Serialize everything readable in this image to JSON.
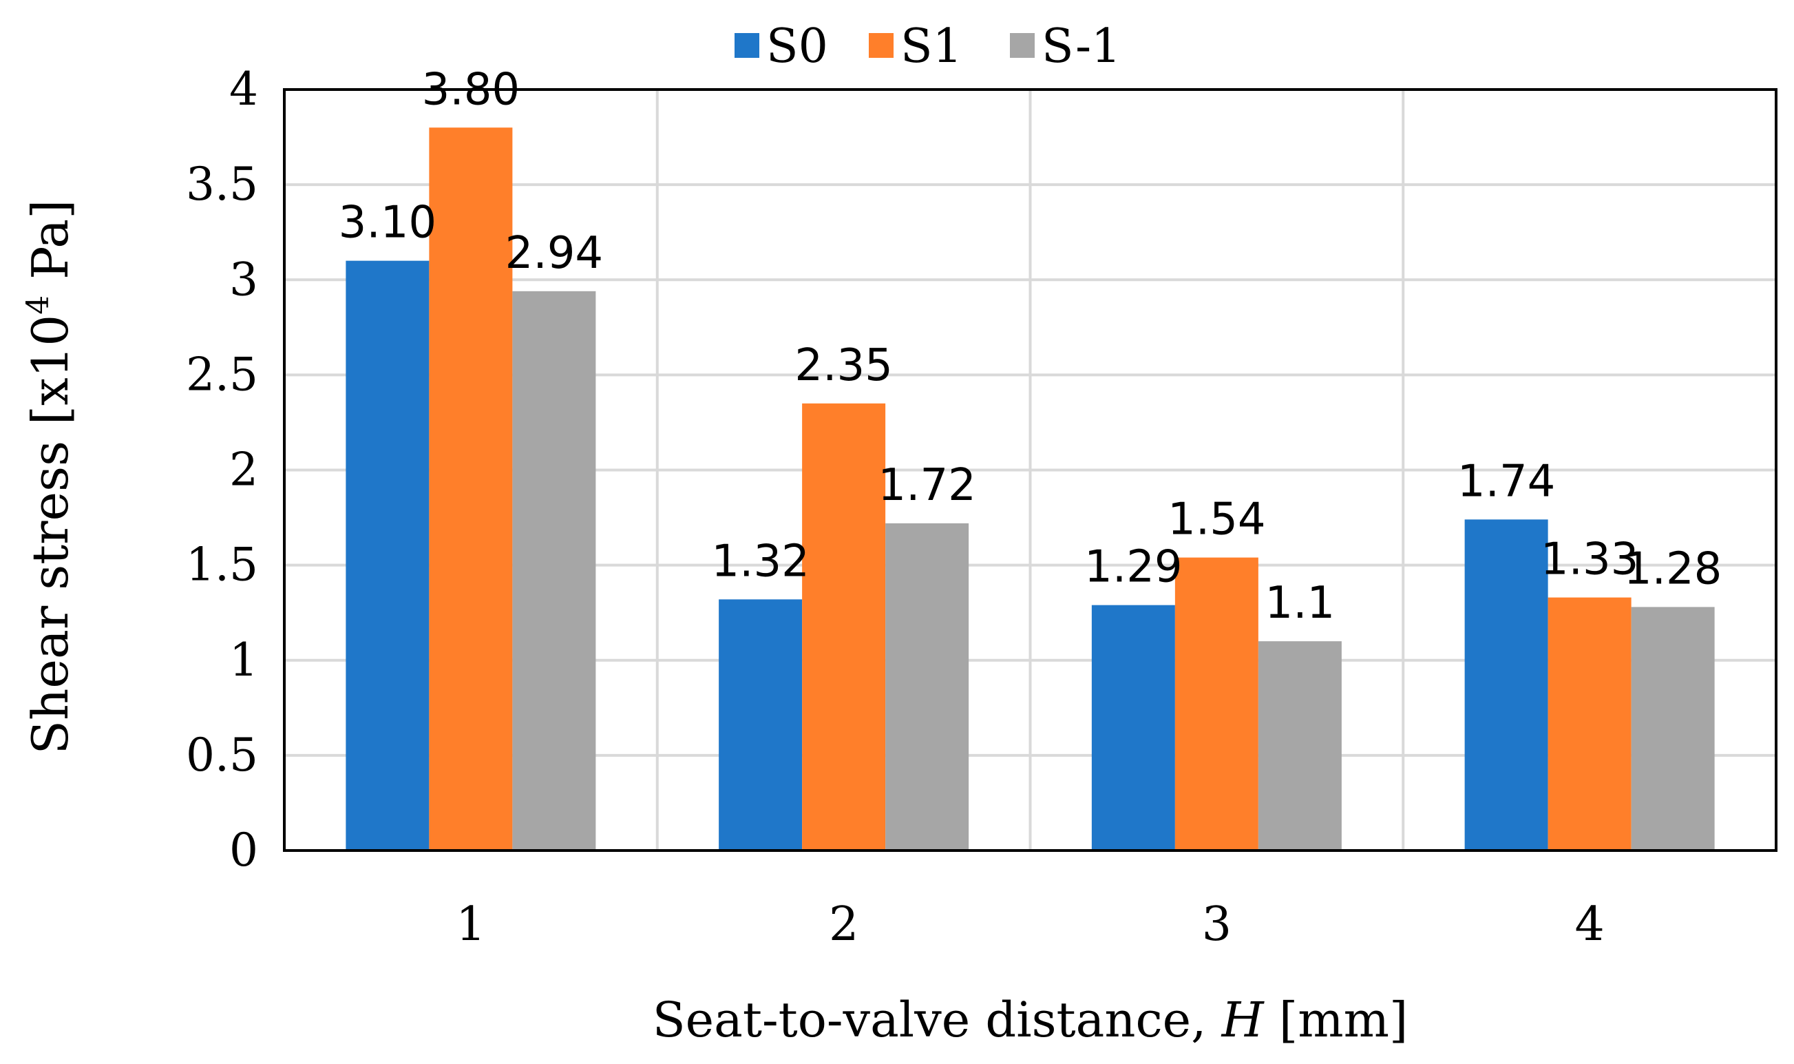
{
  "chart_data": {
    "type": "bar",
    "categories": [
      "1",
      "2",
      "3",
      "4"
    ],
    "series": [
      {
        "name": "S0",
        "color": "#1f77c9",
        "values": [
          3.1,
          1.32,
          1.29,
          1.74
        ],
        "labels": [
          "3.10",
          "1.32",
          "1.29",
          "1.74"
        ]
      },
      {
        "name": "S1",
        "color": "#ff7f2a",
        "values": [
          3.8,
          2.35,
          1.54,
          1.33
        ],
        "labels": [
          "3.80",
          "2.35",
          "1.54",
          "1.33"
        ]
      },
      {
        "name": "S-1",
        "color": "#a6a6a6",
        "values": [
          2.94,
          1.72,
          1.1,
          1.28
        ],
        "labels": [
          "2.94",
          "1.72",
          "1.1",
          "1.28"
        ]
      }
    ],
    "ylim": [
      0,
      4
    ],
    "yticks": [
      "0",
      "0.5",
      "1",
      "1.5",
      "2",
      "2.5",
      "3",
      "3.5",
      "4"
    ],
    "ytick_values": [
      0,
      0.5,
      1,
      1.5,
      2,
      2.5,
      3,
      3.5,
      4
    ],
    "ylabel": {
      "main": "Shear stress [x10",
      "sup": "4",
      "tail": " Pa]"
    },
    "xlabel": {
      "main": "Seat-to-valve distance, ",
      "italic": "H",
      "tail": " [mm]"
    },
    "legend_position": "top-center",
    "grid": true
  }
}
